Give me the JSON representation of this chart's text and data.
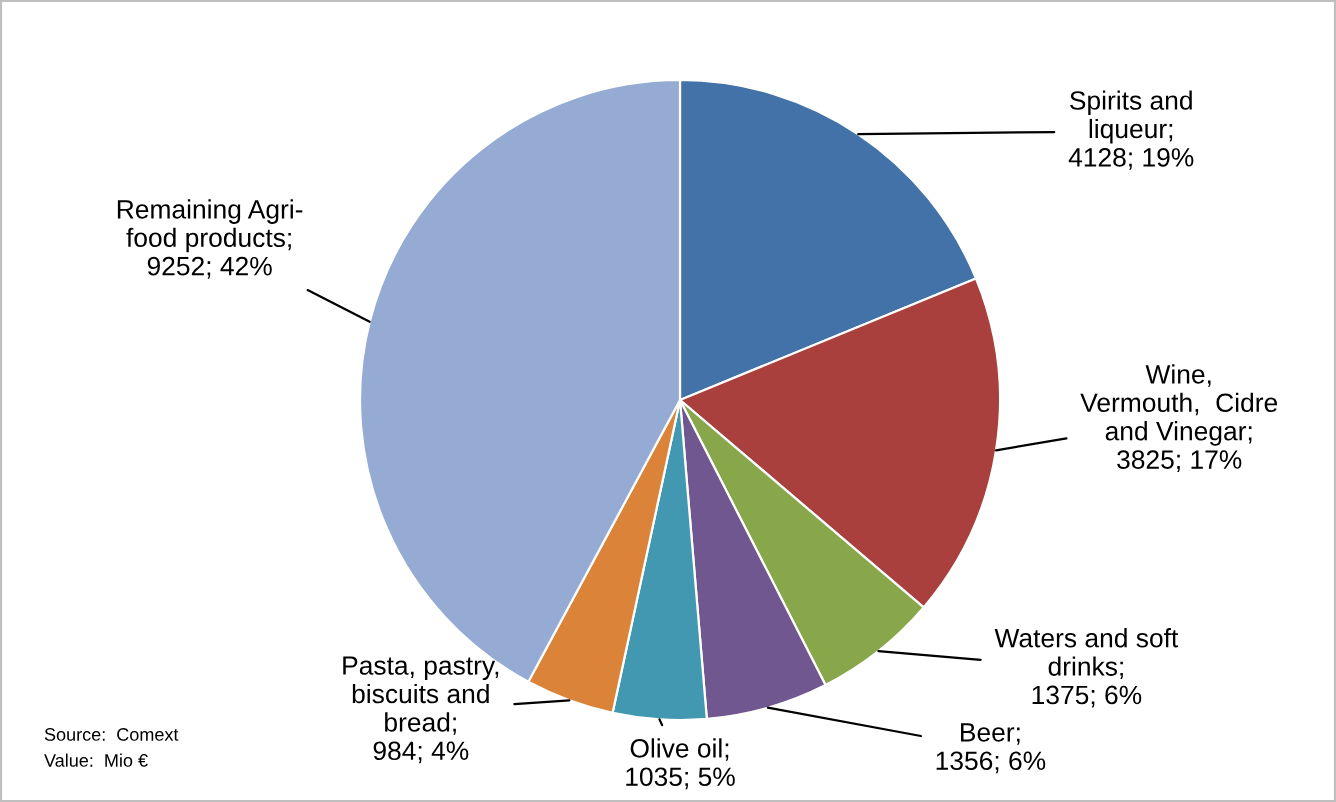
{
  "chart_data": {
    "type": "pie",
    "categories": [
      "Spirits and\nliqueur",
      "Wine,\nVermouth,  Cidre\nand Vinegar",
      "Waters and soft\ndrinks",
      "Beer",
      "Olive oil",
      "Pasta, pastry,\nbiscuits and\nbread",
      "Remaining Agri-\nfood products"
    ],
    "values": [
      4128,
      3825,
      1375,
      1356,
      1035,
      984,
      9252
    ],
    "value_labels": [
      ";\n4128; 19%",
      ";\n3825; 17%",
      ";\n1375; 6%",
      ";\n1356; 6%",
      ";\n1035; 5%",
      ";\n984; 4%",
      ";\n9252; 42%"
    ],
    "colors": [
      "#4372a8",
      "#a9403d",
      "#88a64a",
      "#71578f",
      "#4298b0",
      "#db8439",
      "#95abd3"
    ],
    "annotations": [
      "Source:  Comext",
      "Value:  Mio €"
    ],
    "legend": false
  }
}
